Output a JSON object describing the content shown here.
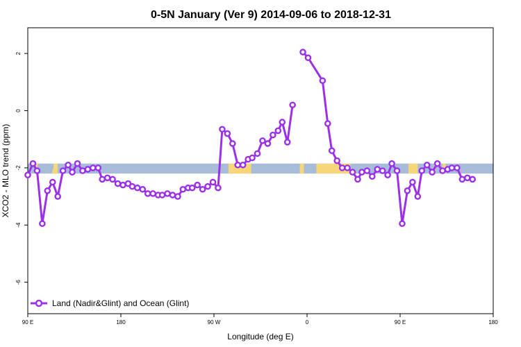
{
  "chart_data": {
    "type": "line",
    "title": "0-5N January (Ver 9)   2014-09-06 to 2018-12-31",
    "xlabel": "Longitude (deg E)",
    "ylabel": "XCO2 - MLO trend (ppm)",
    "xlim": [
      90,
      540
    ],
    "ylim": [
      -7.1,
      2.9
    ],
    "x_ticks": [
      {
        "value": 90,
        "label": "90 E"
      },
      {
        "value": 180,
        "label": "180"
      },
      {
        "value": 270,
        "label": "90 W"
      },
      {
        "value": 360,
        "label": "0"
      },
      {
        "value": 450,
        "label": "90 E"
      },
      {
        "value": 540,
        "label": "180"
      }
    ],
    "y_ticks": [
      {
        "value": 2,
        "label": "2"
      },
      {
        "value": 0,
        "label": "0"
      },
      {
        "value": -2,
        "label": "-2"
      },
      {
        "value": -4,
        "label": "-4"
      },
      {
        "value": -6,
        "label": "-6"
      }
    ],
    "surface_band": {
      "y_range": [
        -2.2,
        -1.85
      ],
      "colors": {
        "ocean": "#a7bcd9",
        "land": "#f5d77a"
      },
      "land_segments": [
        [
          115,
          118
        ],
        [
          115,
          118
        ],
        [
          117,
          119
        ],
        [
          284,
          306
        ],
        [
          353,
          357
        ],
        [
          369,
          402
        ],
        [
          458,
          467
        ],
        [
          491,
          494
        ]
      ],
      "note_diagonal_land": [
        [
          96,
          100
        ],
        [
          113,
          119
        ],
        [
          462,
          466
        ],
        [
          481,
          486
        ]
      ]
    },
    "series": [
      {
        "name": "Land (Nadir&Glint) and Ocean (Glint)",
        "color": "#9b30e8",
        "x": [
          90,
          95,
          99,
          104,
          109,
          114,
          119,
          124,
          129,
          133,
          138,
          143,
          148,
          153,
          158,
          162,
          167,
          172,
          177,
          182,
          187,
          191,
          196,
          201,
          206,
          211,
          216,
          220,
          225,
          230,
          235,
          240,
          245,
          249,
          254,
          259,
          264,
          269,
          274,
          278,
          283,
          288,
          293,
          298,
          303,
          307,
          312,
          317,
          322,
          327,
          332,
          336,
          341,
          346,
          351,
          356,
          361,
          375,
          380,
          384,
          389,
          394,
          399,
          404,
          409,
          413,
          418,
          423,
          428,
          433,
          438,
          442,
          447,
          452,
          457,
          462,
          467,
          471,
          476,
          481,
          486,
          491,
          496,
          500,
          505,
          510,
          515,
          520,
          525,
          529,
          535,
          540
        ],
        "y": [
          -2.25,
          -1.85,
          -2.1,
          -3.95,
          -2.8,
          -2.5,
          -3.0,
          -2.1,
          -1.9,
          -2.15,
          -1.85,
          -2.1,
          -2.05,
          -2.0,
          -2.0,
          -2.4,
          -2.35,
          -2.4,
          -2.55,
          -2.6,
          -2.55,
          -2.65,
          -2.7,
          -2.75,
          -2.9,
          -2.9,
          -2.95,
          -2.95,
          -2.9,
          -2.95,
          -3.0,
          -2.75,
          -2.7,
          -2.7,
          -2.6,
          -2.75,
          -2.65,
          -2.5,
          -2.7,
          -0.65,
          -0.8,
          -1.15,
          -1.9,
          -1.9,
          -1.7,
          -1.65,
          -1.5,
          -1.05,
          -1.15,
          -0.85,
          -0.7,
          -0.4,
          -1.1,
          0.2,
          null,
          2.05,
          1.85,
          1.05,
          -0.45,
          -1.4,
          -1.75,
          -2.0,
          -2.0,
          -2.15,
          -2.4,
          -2.15,
          -2.1,
          -2.3,
          -2.05,
          -2.1,
          -2.25,
          -1.85,
          -2.1,
          -3.95,
          -2.8,
          -2.5,
          -3.0,
          -2.1,
          -1.9,
          -2.15,
          -1.85,
          -2.1,
          -2.05,
          -2.0,
          -2.0,
          -2.4,
          -2.35,
          -2.4,
          null,
          null,
          null,
          null
        ]
      }
    ],
    "legend": {
      "position": "bottom-left"
    },
    "grid": false
  }
}
